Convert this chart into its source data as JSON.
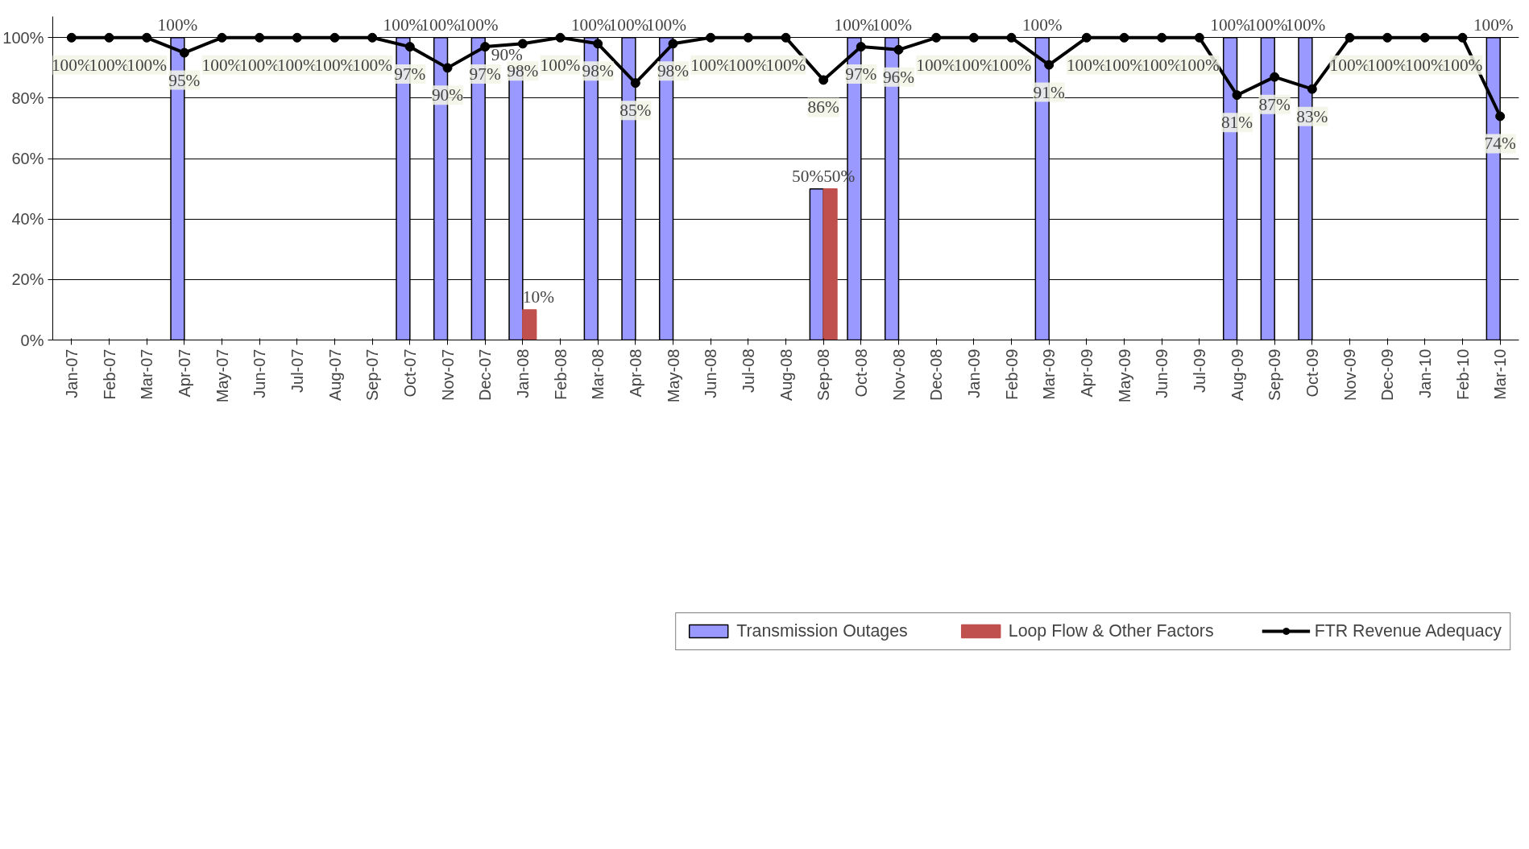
{
  "chart_data": {
    "type": "bar",
    "categories": [
      "Jan-07",
      "Feb-07",
      "Mar-07",
      "Apr-07",
      "May-07",
      "Jun-07",
      "Jul-07",
      "Aug-07",
      "Sep-07",
      "Oct-07",
      "Nov-07",
      "Dec-07",
      "Jan-08",
      "Feb-08",
      "Mar-08",
      "Apr-08",
      "May-08",
      "Jun-08",
      "Jul-08",
      "Aug-08",
      "Sep-08",
      "Oct-08",
      "Nov-08",
      "Dec-08",
      "Jan-09",
      "Feb-09",
      "Mar-09",
      "Apr-09",
      "May-09",
      "Jun-09",
      "Jul-09",
      "Aug-09",
      "Sep-09",
      "Oct-09",
      "Nov-09",
      "Dec-09",
      "Jan-10",
      "Feb-10",
      "Mar-10"
    ],
    "series": [
      {
        "name": "Transmission Outages",
        "color": "#9999ff",
        "values": [
          null,
          null,
          null,
          100,
          null,
          null,
          null,
          null,
          null,
          100,
          100,
          100,
          90,
          null,
          100,
          100,
          100,
          null,
          null,
          null,
          50,
          100,
          100,
          null,
          null,
          null,
          100,
          null,
          null,
          null,
          null,
          100,
          100,
          100,
          null,
          null,
          null,
          null,
          100
        ],
        "value_labels": [
          null,
          null,
          null,
          "100%",
          null,
          null,
          null,
          null,
          null,
          "100%",
          "100%",
          "100%",
          "90%",
          null,
          "100%",
          "100%",
          "100%",
          null,
          null,
          null,
          "50%",
          "100%",
          "100%",
          null,
          null,
          null,
          "100%",
          null,
          null,
          null,
          null,
          "100%",
          "100%",
          "100%",
          null,
          null,
          null,
          null,
          "100%"
        ]
      },
      {
        "name": "Loop Flow & Other Factors",
        "color": "#c0504d",
        "values": [
          null,
          null,
          null,
          null,
          null,
          null,
          null,
          null,
          null,
          null,
          null,
          null,
          10,
          null,
          null,
          null,
          null,
          null,
          null,
          null,
          50,
          null,
          null,
          null,
          null,
          null,
          null,
          null,
          null,
          null,
          null,
          null,
          null,
          null,
          null,
          null,
          null,
          null,
          null
        ],
        "value_labels": [
          null,
          null,
          null,
          null,
          null,
          null,
          null,
          null,
          null,
          null,
          null,
          null,
          "10%",
          null,
          null,
          null,
          null,
          null,
          null,
          null,
          "50%",
          null,
          null,
          null,
          null,
          null,
          null,
          null,
          null,
          null,
          null,
          null,
          null,
          null,
          null,
          null,
          null,
          null,
          null
        ]
      },
      {
        "name": "FTR Revenue Adequacy",
        "type": "line",
        "color": "#000000",
        "marker": "circle",
        "values": [
          100,
          100,
          100,
          95,
          100,
          100,
          100,
          100,
          100,
          97,
          90,
          97,
          98,
          100,
          98,
          85,
          98,
          100,
          100,
          100,
          86,
          97,
          96,
          100,
          100,
          100,
          91,
          100,
          100,
          100,
          100,
          81,
          87,
          83,
          100,
          100,
          100,
          100,
          74
        ],
        "value_labels": [
          "100%",
          "100%",
          "100%",
          "95%",
          "100%",
          "100%",
          "100%",
          "100%",
          "100%",
          "97%",
          "90%",
          "97%",
          "98%",
          "100%",
          "98%",
          "85%",
          "98%",
          "100%",
          "100%",
          "100%",
          "86%",
          "97%",
          "96%",
          "100%",
          "100%",
          "100%",
          "91%",
          "100%",
          "100%",
          "100%",
          "100%",
          "81%",
          "87%",
          "83%",
          "100%",
          "100%",
          "100%",
          "100%",
          "74%"
        ]
      }
    ],
    "ylim": [
      0,
      100
    ],
    "yticks": [
      {
        "value": 0,
        "label": "0%"
      },
      {
        "value": 20,
        "label": "20%"
      },
      {
        "value": 40,
        "label": "40%"
      },
      {
        "value": 60,
        "label": "60%"
      },
      {
        "value": 80,
        "label": "80%"
      },
      {
        "value": 100,
        "label": "100%"
      }
    ],
    "grid": "y",
    "legend": "bottom"
  }
}
